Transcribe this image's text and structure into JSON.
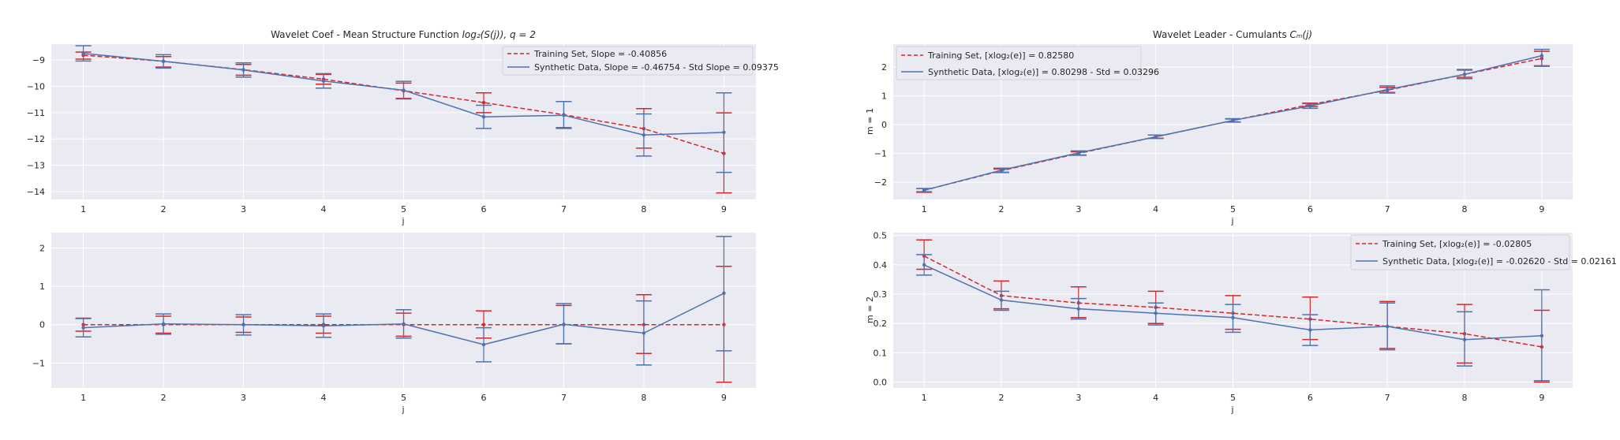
{
  "figure": {
    "background": "#ffffff",
    "axes_background": "#eaeaf2",
    "grid_color": "#ffffff"
  },
  "colors": {
    "training": "#d62728",
    "synthetic": "#4c72b0"
  },
  "chart_data": [
    {
      "id": "top-left",
      "type": "line",
      "title": "Wavelet Coef - Mean Structure Function ",
      "title_math": "log₂(S(j)), q = 2",
      "xlabel": "j",
      "ylabel": "",
      "xlim": [
        0.6,
        9.4
      ],
      "ylim": [
        -14.3,
        -8.4
      ],
      "xticks": [
        1,
        2,
        3,
        4,
        5,
        6,
        7,
        8,
        9
      ],
      "yticks": [
        -14,
        -13,
        -12,
        -11,
        -10,
        -9
      ],
      "grid": true,
      "legend_position": "top-right",
      "x": [
        1,
        2,
        3,
        4,
        5,
        6,
        7,
        8,
        9
      ],
      "series": [
        {
          "name": "Training Set, Slope = -0.40856",
          "style": "dashed",
          "color": "#d62728",
          "values": [
            -8.82,
            -9.05,
            -9.37,
            -9.73,
            -10.17,
            -10.62,
            -11.08,
            -11.61,
            -12.55
          ],
          "err_low": [
            -8.97,
            -9.27,
            -9.58,
            -9.92,
            -10.46,
            -11.0,
            -11.57,
            -12.35,
            -14.05
          ],
          "err_high": [
            -8.7,
            -8.87,
            -9.17,
            -9.55,
            -9.88,
            -10.25,
            -10.58,
            -10.85,
            -11.01
          ]
        },
        {
          "name": "Synthetic Data, Slope = -0.46754 - Std Slope = 0.09375",
          "style": "solid",
          "color": "#4c72b0",
          "values": [
            -8.75,
            -9.05,
            -9.38,
            -9.8,
            -10.15,
            -11.16,
            -11.1,
            -11.85,
            -11.75
          ],
          "err_low": [
            -9.04,
            -9.31,
            -9.65,
            -10.07,
            -10.48,
            -11.6,
            -11.6,
            -12.65,
            -13.27
          ],
          "err_high": [
            -8.46,
            -8.8,
            -9.11,
            -9.52,
            -9.81,
            -10.72,
            -10.58,
            -11.05,
            -10.25
          ]
        }
      ]
    },
    {
      "id": "bottom-left",
      "type": "line",
      "title": "",
      "xlabel": "j",
      "ylabel": "",
      "xlim": [
        0.6,
        9.4
      ],
      "ylim": [
        -1.65,
        2.4
      ],
      "xticks": [
        1,
        2,
        3,
        4,
        5,
        6,
        7,
        8,
        9
      ],
      "yticks": [
        -1,
        0,
        1,
        2
      ],
      "grid": true,
      "legend_position": "",
      "x": [
        1,
        2,
        3,
        4,
        5,
        6,
        7,
        8,
        9
      ],
      "series": [
        {
          "name": "",
          "style": "dashed",
          "color": "#d62728",
          "values": [
            0,
            0,
            0,
            0,
            0,
            0,
            0,
            0,
            0
          ],
          "err_low": [
            -0.17,
            -0.22,
            -0.2,
            -0.22,
            -0.3,
            -0.35,
            -0.5,
            -0.75,
            -1.5
          ],
          "err_high": [
            0.17,
            0.22,
            0.2,
            0.22,
            0.3,
            0.36,
            0.5,
            0.78,
            1.52
          ]
        },
        {
          "name": "",
          "style": "solid",
          "color": "#4c72b0",
          "values": [
            -0.08,
            0.02,
            0.0,
            -0.03,
            0.02,
            -0.52,
            0.01,
            -0.22,
            0.82
          ],
          "err_low": [
            -0.32,
            -0.25,
            -0.27,
            -0.33,
            -0.35,
            -0.97,
            -0.5,
            -1.05,
            -0.68
          ],
          "err_high": [
            0.16,
            0.28,
            0.26,
            0.28,
            0.39,
            -0.08,
            0.55,
            0.62,
            2.3
          ]
        }
      ]
    },
    {
      "id": "top-right",
      "type": "line",
      "title": "Wavelet Leader - Cumulants ",
      "title_math": "Cₘ(j)",
      "xlabel": "j",
      "ylabel": "m = 1",
      "xlim": [
        0.6,
        9.4
      ],
      "ylim": [
        -2.6,
        2.8
      ],
      "xticks": [
        1,
        2,
        3,
        4,
        5,
        6,
        7,
        8,
        9
      ],
      "yticks": [
        -2,
        -1,
        0,
        1,
        2
      ],
      "grid": true,
      "legend_position": "top-left",
      "x": [
        1,
        2,
        3,
        4,
        5,
        6,
        7,
        8,
        9
      ],
      "series": [
        {
          "name": "Training Set, [xlog₂(e)] = 0.82580",
          "style": "dashed",
          "color": "#d62728",
          "values": [
            -2.28,
            -1.6,
            -1.0,
            -0.42,
            0.15,
            0.7,
            1.2,
            1.75,
            2.3
          ],
          "err_low": [
            -2.35,
            -1.66,
            -1.06,
            -0.47,
            0.1,
            0.63,
            1.12,
            1.65,
            2.05
          ],
          "err_high": [
            -2.22,
            -1.54,
            -0.94,
            -0.36,
            0.2,
            0.75,
            1.3,
            1.9,
            2.55
          ]
        },
        {
          "name": "Synthetic Data, [xlog₂(e)] = 0.80298 - Std = 0.03296",
          "style": "solid",
          "color": "#4c72b0",
          "values": [
            -2.28,
            -1.58,
            -0.98,
            -0.42,
            0.15,
            0.65,
            1.22,
            1.75,
            2.4
          ],
          "err_low": [
            -2.33,
            -1.65,
            -1.05,
            -0.48,
            0.09,
            0.57,
            1.1,
            1.6,
            2.03
          ],
          "err_high": [
            -2.22,
            -1.51,
            -0.91,
            -0.36,
            0.21,
            0.73,
            1.35,
            1.92,
            2.62
          ]
        }
      ]
    },
    {
      "id": "bottom-right",
      "type": "line",
      "title": "",
      "xlabel": "j",
      "ylabel": "m = 2",
      "xlim": [
        0.6,
        9.4
      ],
      "ylim": [
        -0.02,
        0.51
      ],
      "xticks": [
        1,
        2,
        3,
        4,
        5,
        6,
        7,
        8,
        9
      ],
      "yticks": [
        0.0,
        0.1,
        0.2,
        0.3,
        0.4,
        0.5
      ],
      "grid": true,
      "legend_position": "top-right",
      "x": [
        1,
        2,
        3,
        4,
        5,
        6,
        7,
        8,
        9
      ],
      "series": [
        {
          "name": "Training Set, [xlog₂(e)] = -0.02805",
          "style": "dashed",
          "color": "#d62728",
          "values": [
            0.43,
            0.295,
            0.27,
            0.255,
            0.235,
            0.215,
            0.19,
            0.165,
            0.12
          ],
          "err_low": [
            0.385,
            0.25,
            0.22,
            0.2,
            0.18,
            0.145,
            0.115,
            0.065,
            0.0
          ],
          "err_high": [
            0.485,
            0.345,
            0.325,
            0.31,
            0.295,
            0.29,
            0.275,
            0.265,
            0.245
          ]
        },
        {
          "name": "Synthetic Data, [xlog₂(e)] = -0.02620 - Std = 0.02161",
          "style": "solid",
          "color": "#4c72b0",
          "values": [
            0.4,
            0.28,
            0.25,
            0.235,
            0.22,
            0.178,
            0.19,
            0.145,
            0.158
          ],
          "err_low": [
            0.365,
            0.245,
            0.215,
            0.195,
            0.17,
            0.125,
            0.11,
            0.055,
            0.005
          ],
          "err_high": [
            0.435,
            0.31,
            0.285,
            0.27,
            0.265,
            0.23,
            0.27,
            0.24,
            0.315
          ]
        }
      ]
    }
  ]
}
